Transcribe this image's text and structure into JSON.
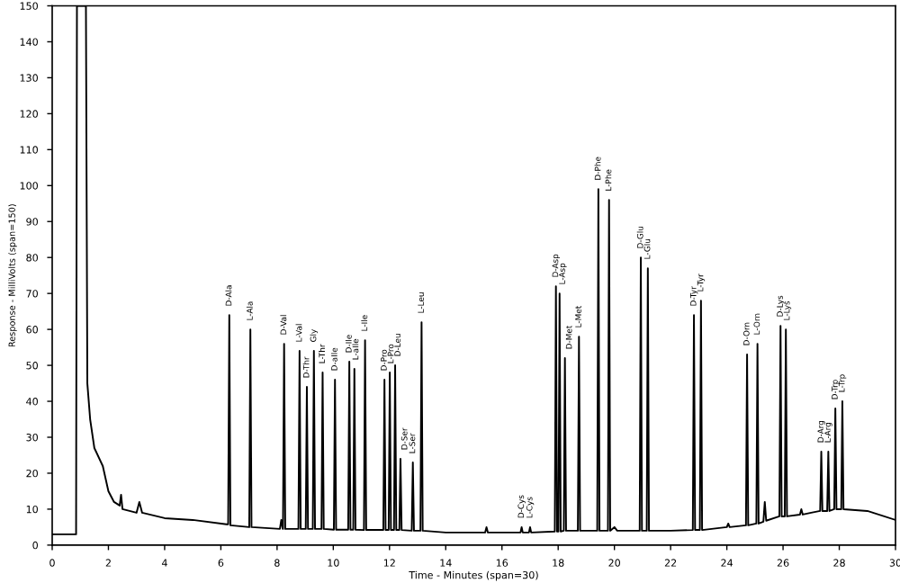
{
  "chart_data": {
    "type": "line",
    "xlabel": "Time - Minutes (span=30)",
    "ylabel": "Response - MilliVolts (span=150)",
    "xlim": [
      0,
      30
    ],
    "xticks": [
      0,
      2,
      4,
      6,
      8,
      10,
      12,
      14,
      16,
      18,
      20,
      22,
      24,
      26,
      28,
      30
    ],
    "ylim": [
      0,
      150
    ],
    "yticks": [
      0,
      10,
      20,
      30,
      40,
      50,
      60,
      70,
      80,
      90,
      100,
      110,
      120,
      130,
      140,
      150
    ],
    "grid": false,
    "legend": false,
    "marker": "none",
    "line_style": "solid",
    "series": [
      {
        "color": "#000000",
        "x": [
          0,
          0.85,
          0.88,
          1.2,
          1.25,
          1.35,
          1.5,
          1.8,
          2.0,
          2.2,
          2.4,
          2.45,
          2.5,
          3.0,
          3.1,
          3.2,
          4,
          5,
          6.2,
          6.26,
          6.3,
          6.34,
          7.01,
          7.05,
          7.09,
          8.1,
          8.15,
          8.2,
          8.21,
          8.25,
          8.29,
          8.76,
          8.8,
          8.84,
          9.02,
          9.06,
          9.1,
          9.27,
          9.31,
          9.35,
          9.58,
          9.62,
          9.66,
          10.02,
          10.06,
          10.1,
          10.53,
          10.57,
          10.61,
          10.71,
          10.75,
          10.79,
          11.09,
          11.13,
          11.17,
          11.78,
          11.82,
          11.86,
          11.97,
          12.01,
          12.05,
          12.16,
          12.2,
          12.24,
          12.35,
          12.39,
          12.43,
          12.79,
          12.83,
          12.87,
          13.1,
          13.14,
          13.18,
          14,
          15.4,
          15.45,
          15.5,
          16.66,
          16.7,
          16.74,
          16.96,
          17.0,
          17.04,
          17.88,
          17.92,
          17.96,
          18.01,
          18.05,
          18.09,
          18.2,
          18.24,
          18.28,
          18.7,
          18.74,
          18.78,
          19.39,
          19.43,
          19.47,
          19.77,
          19.81,
          19.85,
          20,
          20.1,
          20.9,
          20.94,
          20.98,
          21.15,
          21.19,
          21.23,
          22,
          22.79,
          22.83,
          22.87,
          23.04,
          23.08,
          23.12,
          24,
          24.05,
          24.1,
          24.68,
          24.72,
          24.76,
          25.05,
          25.09,
          25.13,
          25.3,
          25.35,
          25.4,
          25.87,
          25.91,
          25.95,
          26.06,
          26.1,
          26.14,
          26.6,
          26.65,
          26.7,
          27,
          27.32,
          27.36,
          27.4,
          27.57,
          27.61,
          27.65,
          27.82,
          27.86,
          27.9,
          28.07,
          28.11,
          28.15,
          29,
          30
        ],
        "values": [
          3,
          3,
          150,
          150,
          45,
          35,
          27,
          22,
          15,
          12,
          11,
          14,
          10,
          9,
          12,
          9,
          7.5,
          7,
          5.8,
          5.8,
          64,
          5.5,
          5,
          60,
          5,
          4.5,
          7,
          4.5,
          4.5,
          56,
          4.5,
          4.5,
          54,
          4.5,
          4.5,
          44,
          4.5,
          4.5,
          54,
          4.5,
          4.5,
          48,
          4.5,
          4.3,
          46,
          4.3,
          4.3,
          51,
          4.3,
          4.3,
          49,
          4.3,
          4.2,
          57,
          4.2,
          4.2,
          46,
          4.2,
          4.2,
          48,
          4.2,
          4.2,
          50,
          4.2,
          4.2,
          24,
          4.2,
          4,
          23,
          4,
          4,
          62,
          4,
          3.5,
          3.5,
          5,
          3.5,
          3.5,
          5,
          3.5,
          3.5,
          5,
          3.5,
          3.8,
          72,
          3.8,
          3.8,
          70,
          3.8,
          4,
          52,
          4,
          4,
          58,
          4,
          4,
          99,
          4,
          4,
          96,
          4,
          5,
          4,
          4,
          80,
          4,
          4,
          77,
          4,
          4,
          4.2,
          64,
          4.2,
          4.2,
          68,
          4.2,
          5,
          6,
          5,
          5.5,
          53,
          5.5,
          6,
          56,
          6,
          6.5,
          12,
          6.8,
          8,
          61,
          8,
          8,
          60,
          8,
          8.5,
          10,
          8.5,
          9,
          9.5,
          26,
          9.5,
          9.5,
          26,
          9.5,
          10,
          38,
          10,
          10,
          40,
          10,
          9.5,
          7
        ]
      }
    ],
    "annotations": [
      {
        "text": "D-Ala",
        "x": 6.3,
        "y": 64
      },
      {
        "text": "L-Ala",
        "x": 7.05,
        "y": 60
      },
      {
        "text": "D-Val",
        "x": 8.25,
        "y": 56
      },
      {
        "text": "L-Val",
        "x": 8.8,
        "y": 54
      },
      {
        "text": "D-Thr",
        "x": 9.06,
        "y": 44
      },
      {
        "text": "Gly",
        "x": 9.31,
        "y": 54
      },
      {
        "text": "L-Thr",
        "x": 9.62,
        "y": 48
      },
      {
        "text": "D-aIle",
        "x": 10.06,
        "y": 46
      },
      {
        "text": "D-Ile",
        "x": 10.57,
        "y": 51
      },
      {
        "text": "L-aIle",
        "x": 10.75,
        "y": 49
      },
      {
        "text": "L-Ile",
        "x": 11.13,
        "y": 57
      },
      {
        "text": "D-Pro",
        "x": 11.82,
        "y": 46
      },
      {
        "text": "L-Pro",
        "x": 12.01,
        "y": 48
      },
      {
        "text": "D-Leu",
        "x": 12.2,
        "y": 50
      },
      {
        "text": "D-Ser",
        "x": 12.39,
        "y": 24
      },
      {
        "text": "L-Ser",
        "x": 12.83,
        "y": 23
      },
      {
        "text": "L-Leu",
        "x": 13.14,
        "y": 62
      },
      {
        "text": "D-Cys",
        "x": 16.7,
        "y": 5
      },
      {
        "text": "L-Cys",
        "x": 17.0,
        "y": 5
      },
      {
        "text": "D-Asp",
        "x": 17.92,
        "y": 72
      },
      {
        "text": "L-Asp",
        "x": 18.05,
        "y": 70
      },
      {
        "text": "D-Met",
        "x": 18.24,
        "y": 52
      },
      {
        "text": "L-Met",
        "x": 18.74,
        "y": 58
      },
      {
        "text": "D-Phe",
        "x": 19.43,
        "y": 99
      },
      {
        "text": "L-Phe",
        "x": 19.81,
        "y": 96
      },
      {
        "text": "D-Glu",
        "x": 20.94,
        "y": 80
      },
      {
        "text": "L-Glu",
        "x": 21.19,
        "y": 77
      },
      {
        "text": "D-Tyr",
        "x": 22.83,
        "y": 64
      },
      {
        "text": "L-Tyr",
        "x": 23.08,
        "y": 68
      },
      {
        "text": "D-Orn",
        "x": 24.72,
        "y": 53
      },
      {
        "text": "L-Orn",
        "x": 25.09,
        "y": 56
      },
      {
        "text": "D-Lys",
        "x": 25.91,
        "y": 61
      },
      {
        "text": "L-Lys",
        "x": 26.1,
        "y": 60
      },
      {
        "text": "D-Arg",
        "x": 27.36,
        "y": 26
      },
      {
        "text": "L-Arg",
        "x": 27.61,
        "y": 26
      },
      {
        "text": "D-Trp",
        "x": 27.86,
        "y": 38
      },
      {
        "text": "L-Trp",
        "x": 28.11,
        "y": 40
      }
    ]
  }
}
